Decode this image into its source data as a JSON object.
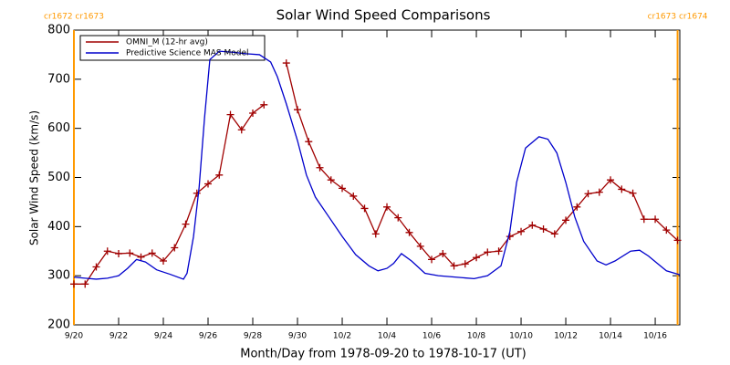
{
  "chart_data": {
    "type": "line",
    "title": "Solar Wind Speed Comparisons",
    "xlabel": "Month/Day from 1978-09-20 to 1978-10-17 (UT)",
    "ylabel": "Solar Wind Speed (km/s)",
    "xlim": [
      0,
      27.1
    ],
    "ylim": [
      200,
      800
    ],
    "yticks": [
      200,
      300,
      400,
      500,
      600,
      700,
      800
    ],
    "xticks": [
      {
        "value": 0,
        "label": "9/20"
      },
      {
        "value": 2,
        "label": "9/22"
      },
      {
        "value": 4,
        "label": "9/24"
      },
      {
        "value": 6,
        "label": "9/26"
      },
      {
        "value": 8,
        "label": "9/28"
      },
      {
        "value": 10,
        "label": "9/30"
      },
      {
        "value": 12,
        "label": "10/2"
      },
      {
        "value": 14,
        "label": "10/4"
      },
      {
        "value": 16,
        "label": "10/6"
      },
      {
        "value": 18,
        "label": "10/8"
      },
      {
        "value": 20,
        "label": "10/10"
      },
      {
        "value": 22,
        "label": "10/12"
      },
      {
        "value": 24,
        "label": "10/14"
      },
      {
        "value": 26,
        "label": "10/16"
      }
    ],
    "markers": [
      {
        "x": 0,
        "label": "cr1672 cr1673",
        "color": "#ff9900"
      },
      {
        "x": 27.0,
        "label": "cr1673 cr1674",
        "color": "#ff9900"
      }
    ],
    "series": [
      {
        "name": "OMNI_M (12-hr avg)",
        "color": "#a00000",
        "marker": "+",
        "x": [
          0,
          0.5,
          1,
          1.5,
          2,
          2.5,
          3,
          3.5,
          4,
          4.5,
          5,
          5.5,
          6,
          6.5,
          7,
          7.5,
          8,
          8.5,
          9,
          9.5,
          10,
          10.5,
          11,
          11.5,
          12,
          12.5,
          13,
          13.5,
          14,
          14.5,
          15,
          15.5,
          16,
          16.5,
          17,
          17.5,
          18,
          18.5,
          19,
          19.5,
          20,
          20.5,
          21,
          21.5,
          22,
          22.5,
          23,
          23.5,
          24,
          24.5,
          25,
          25.5,
          26,
          26.5,
          27
        ],
        "values": [
          283,
          283,
          318,
          350,
          345,
          346,
          338,
          346,
          330,
          357,
          405,
          468,
          487,
          505,
          628,
          597,
          631,
          648,
          null,
          733,
          638,
          573,
          520,
          495,
          478,
          462,
          437,
          385,
          440,
          418,
          388,
          360,
          333,
          345,
          320,
          324,
          337,
          348,
          350,
          380,
          390,
          403,
          395,
          385,
          413,
          440,
          467,
          470,
          495,
          476,
          468,
          415,
          415,
          393,
          372
        ]
      },
      {
        "name": "Predictive Science MAS Model",
        "color": "#0000cc",
        "marker": "none",
        "x": [
          0,
          0.5,
          1,
          1.5,
          2,
          2.4,
          2.8,
          3.2,
          3.7,
          4.3,
          4.9,
          5.06,
          5.35,
          5.6,
          5.84,
          6.08,
          6.5,
          7.1,
          7.7,
          8.3,
          8.8,
          9.1,
          9.5,
          10,
          10.4,
          10.8,
          11.4,
          12,
          12.6,
          13.2,
          13.6,
          14,
          14.3,
          14.65,
          15.1,
          15.7,
          16.3,
          17.1,
          17.9,
          18.5,
          19.1,
          19.5,
          19.8,
          20.2,
          20.8,
          21.2,
          21.6,
          22,
          22.4,
          22.8,
          23.4,
          23.8,
          24.2,
          24.9,
          25.3,
          25.7,
          26.1,
          26.5,
          27.1
        ],
        "values": [
          297,
          295,
          293,
          295,
          300,
          315,
          333,
          328,
          312,
          303,
          293,
          305,
          380,
          480,
          620,
          740,
          757,
          755,
          752,
          750,
          735,
          705,
          650,
          575,
          505,
          460,
          420,
          380,
          343,
          320,
          310,
          315,
          325,
          345,
          330,
          305,
          300,
          297,
          294,
          300,
          320,
          390,
          490,
          560,
          583,
          578,
          550,
          490,
          420,
          370,
          330,
          322,
          330,
          350,
          352,
          340,
          325,
          310,
          302
        ]
      }
    ]
  }
}
